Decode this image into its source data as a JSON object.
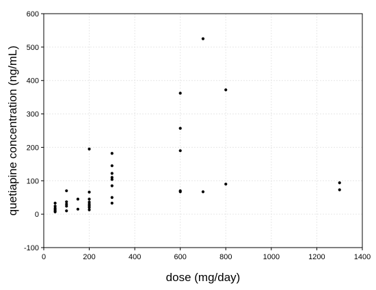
{
  "chart_data": {
    "type": "scatter",
    "title": "",
    "xlabel": "dose (mg/day)",
    "ylabel": "quetiapine concentration (ng/mL)",
    "xlim": [
      0,
      1400
    ],
    "ylim": [
      -100,
      600
    ],
    "xticks": [
      0,
      200,
      400,
      600,
      800,
      1000,
      1200,
      1400
    ],
    "yticks": [
      -100,
      0,
      100,
      200,
      300,
      400,
      500,
      600
    ],
    "grid": true,
    "legend": "none",
    "marker_color": "#000000",
    "points": [
      {
        "x": 50,
        "y": 33
      },
      {
        "x": 50,
        "y": 24
      },
      {
        "x": 50,
        "y": 18
      },
      {
        "x": 50,
        "y": 14
      },
      {
        "x": 50,
        "y": 10
      },
      {
        "x": 50,
        "y": 7
      },
      {
        "x": 100,
        "y": 70
      },
      {
        "x": 100,
        "y": 37
      },
      {
        "x": 100,
        "y": 30
      },
      {
        "x": 100,
        "y": 24
      },
      {
        "x": 100,
        "y": 10
      },
      {
        "x": 150,
        "y": 45
      },
      {
        "x": 150,
        "y": 15
      },
      {
        "x": 200,
        "y": 195
      },
      {
        "x": 200,
        "y": 66
      },
      {
        "x": 200,
        "y": 45
      },
      {
        "x": 200,
        "y": 36
      },
      {
        "x": 200,
        "y": 30
      },
      {
        "x": 200,
        "y": 25
      },
      {
        "x": 200,
        "y": 20
      },
      {
        "x": 200,
        "y": 13
      },
      {
        "x": 300,
        "y": 182
      },
      {
        "x": 300,
        "y": 145
      },
      {
        "x": 300,
        "y": 122
      },
      {
        "x": 300,
        "y": 110
      },
      {
        "x": 300,
        "y": 104
      },
      {
        "x": 300,
        "y": 85
      },
      {
        "x": 300,
        "y": 50
      },
      {
        "x": 300,
        "y": 33
      },
      {
        "x": 600,
        "y": 362
      },
      {
        "x": 600,
        "y": 257
      },
      {
        "x": 600,
        "y": 190
      },
      {
        "x": 600,
        "y": 70
      },
      {
        "x": 600,
        "y": 67
      },
      {
        "x": 700,
        "y": 525
      },
      {
        "x": 700,
        "y": 67
      },
      {
        "x": 800,
        "y": 372
      },
      {
        "x": 800,
        "y": 90
      },
      {
        "x": 1300,
        "y": 94
      },
      {
        "x": 1300,
        "y": 73
      }
    ]
  }
}
